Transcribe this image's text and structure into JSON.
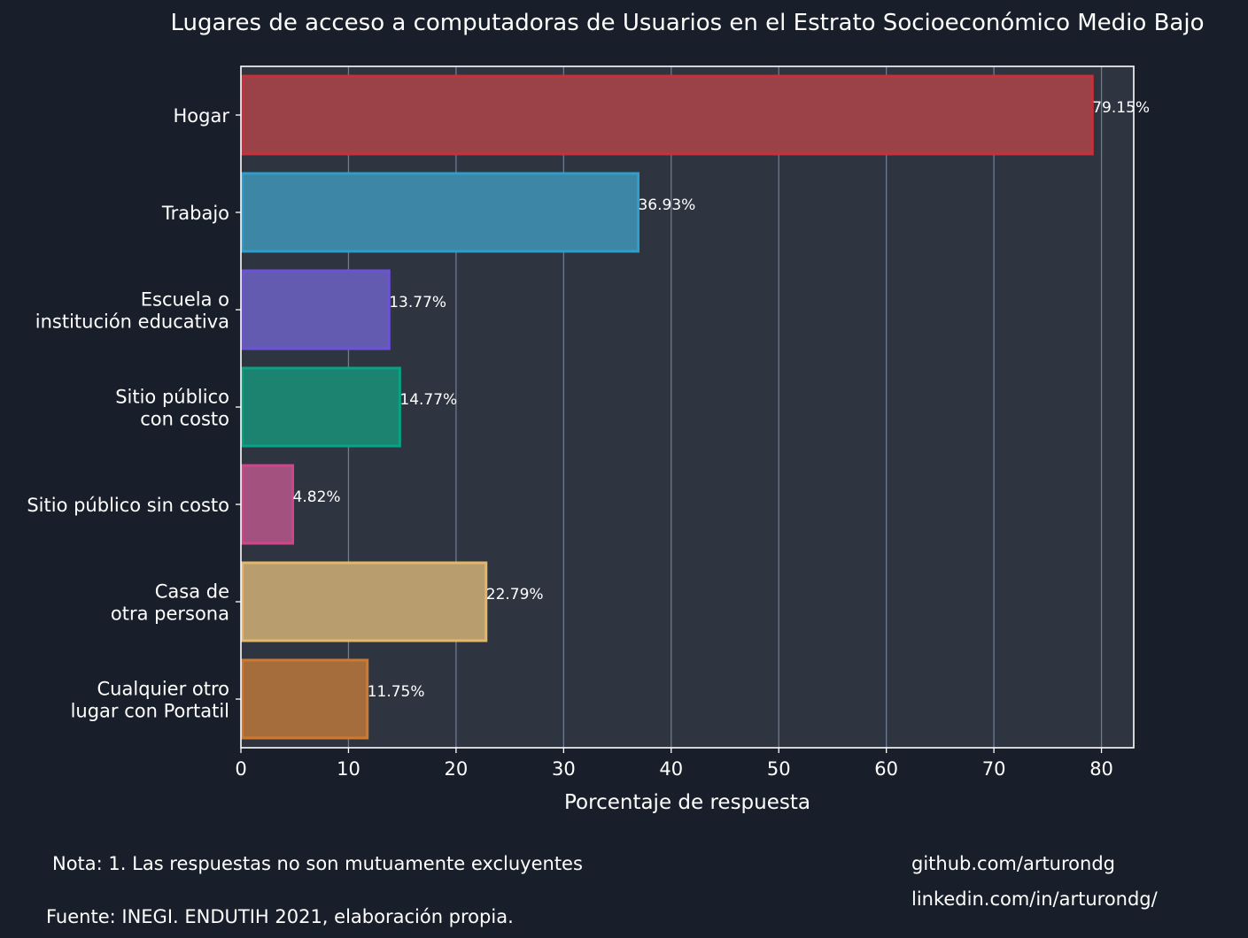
{
  "chart_data": {
    "type": "bar",
    "orientation": "horizontal",
    "title": "Lugares de acceso a computadoras de Usuarios en el Estrato Socioeconómico Medio Bajo",
    "xlabel": "Porcentaje de respuesta",
    "ylabel": "",
    "xlim": [
      0,
      83
    ],
    "xticks": [
      0,
      10,
      20,
      30,
      40,
      50,
      60,
      70,
      80
    ],
    "grid": "vertical",
    "categories": [
      [
        "Hogar"
      ],
      [
        "Trabajo"
      ],
      [
        "Escuela o",
        "institución educativa"
      ],
      [
        "Sitio público",
        "con costo"
      ],
      [
        "Sitio público sin costo"
      ],
      [
        "Casa de",
        "otra persona"
      ],
      [
        "Cualquier otro",
        "lugar con Portatil"
      ]
    ],
    "values": [
      79.15,
      36.93,
      13.77,
      14.77,
      4.82,
      22.79,
      11.75
    ],
    "value_labels": [
      "79.15%",
      "36.93%",
      "13.77%",
      "14.77%",
      "4.82%",
      "22.79%",
      "11.75%"
    ],
    "fill_colors": [
      "#9b4249",
      "#3e86a6",
      "#635bb0",
      "#1b836f",
      "#a3527f",
      "#b89e6e",
      "#a66d3c"
    ],
    "edge_colors": [
      "#c9303a",
      "#2e9fcc",
      "#6b52d9",
      "#08a384",
      "#d04489",
      "#e4b669",
      "#cd7a2f"
    ]
  },
  "footer": {
    "note": "Nota: 1. Las respuestas no son mutuamente excluyentes",
    "source": "Fuente: INEGI. ENDUTIH 2021, elaboración propia.",
    "github": "github.com/arturondg",
    "linkedin": "linkedin.com/in/arturondg/"
  }
}
